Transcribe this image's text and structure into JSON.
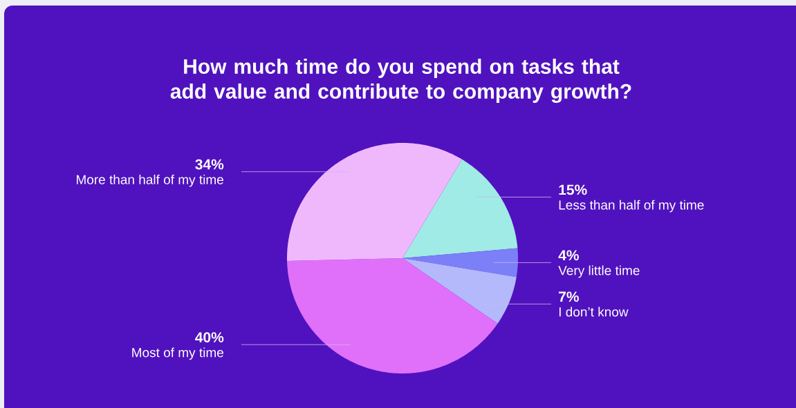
{
  "chart_data": {
    "type": "pie",
    "title": "How much time do you spend on tasks that add value and contribute to company growth?",
    "categories": [
      "Less than half of my time",
      "Very little time",
      "I don’t know",
      "Most of my time",
      "More than half of my time"
    ],
    "values": [
      15,
      4,
      7,
      40,
      34
    ],
    "value_labels": [
      "15%",
      "4%",
      "7%",
      "40%",
      "34%"
    ],
    "colors": [
      "#a0ebe6",
      "#7b7ff8",
      "#b4b9fc",
      "#e070fa",
      "#f0b8fc"
    ]
  }
}
